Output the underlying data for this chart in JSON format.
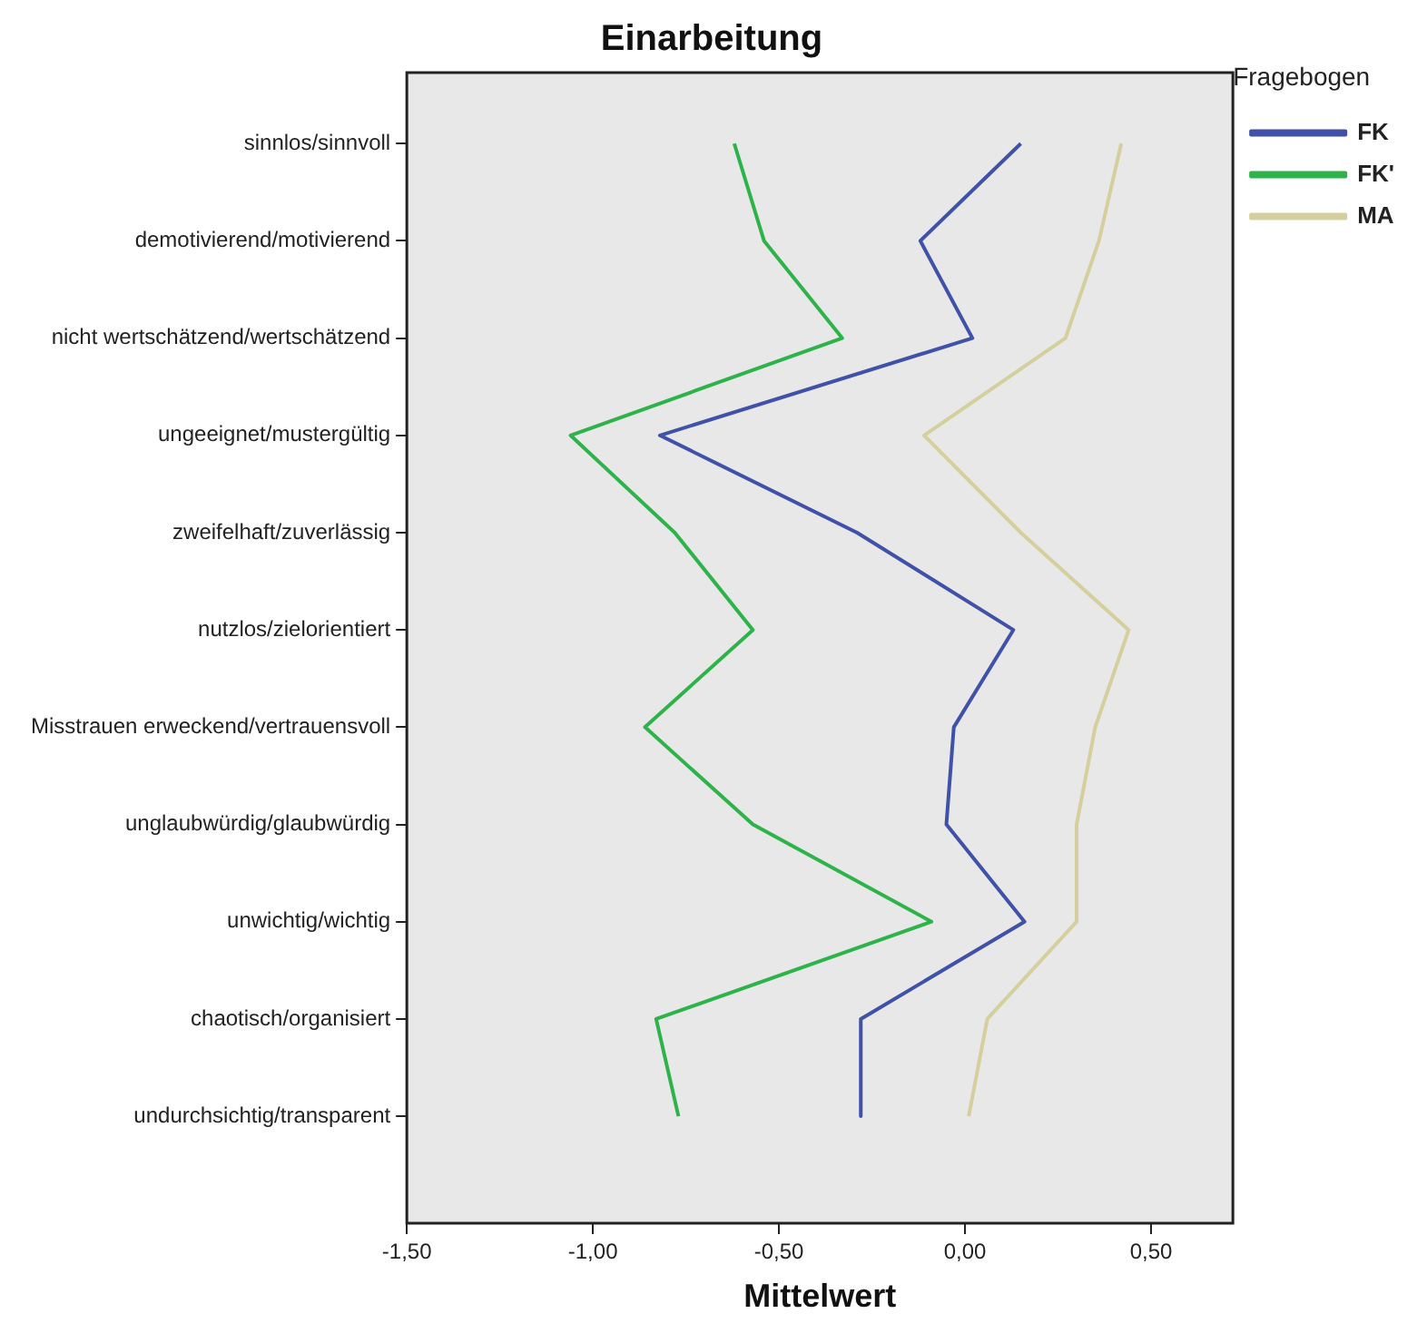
{
  "chart_data": {
    "type": "line",
    "title": "Einarbeitung",
    "xlabel": "Mittelwert",
    "legend_title": "Fragebogen",
    "orientation": "horizontal",
    "categories": [
      "sinnlos/sinnvoll",
      "demotivierend/motivierend",
      "nicht wertschätzend/wertschätzend",
      "ungeeignet/mustergültig",
      "zweifelhaft/zuverlässig",
      "nutzlos/zielorientiert",
      "Misstrauen erweckend/vertrauensvoll",
      "unglaubwürdig/glaubwürdig",
      "unwichtig/wichtig",
      "chaotisch/organisiert",
      "undurchsichtig/transparent"
    ],
    "series": [
      {
        "name": "FK",
        "color": "#3f51a8",
        "values": [
          0.15,
          -0.12,
          0.02,
          -0.82,
          -0.29,
          0.13,
          -0.03,
          -0.05,
          0.16,
          -0.28,
          -0.28
        ]
      },
      {
        "name": "FK'",
        "color": "#2db34a",
        "values": [
          -0.62,
          -0.54,
          -0.33,
          -1.06,
          -0.78,
          -0.57,
          -0.86,
          -0.57,
          -0.09,
          -0.83,
          -0.77
        ]
      },
      {
        "name": "MA",
        "color": "#d4cf9c",
        "values": [
          0.42,
          0.36,
          0.27,
          -0.11,
          0.15,
          0.44,
          0.35,
          0.3,
          0.3,
          0.06,
          0.01
        ]
      }
    ],
    "xlim": [
      -1.5,
      0.72
    ],
    "xticks": [
      {
        "value": -1.5,
        "label": "-1,50"
      },
      {
        "value": -1,
        "label": "-1,00"
      },
      {
        "value": -0.5,
        "label": "-0,50"
      },
      {
        "value": 0,
        "label": "0,00"
      },
      {
        "value": 0.5,
        "label": "0,50"
      }
    ],
    "grid": false,
    "legend": "top right",
    "marker": "none",
    "line_style": "solid"
  }
}
